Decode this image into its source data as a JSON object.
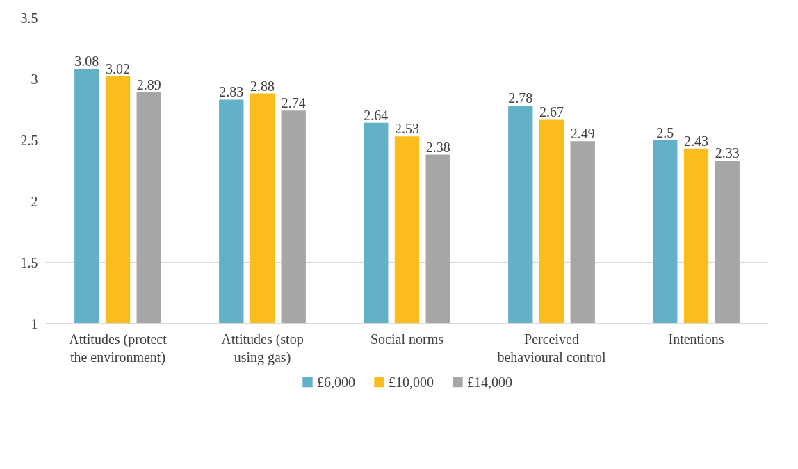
{
  "chart_data": {
    "type": "bar",
    "categories": [
      "Attitudes (protect the environment)",
      "Attitudes (stop using gas)",
      "Social norms",
      "Perceived behavioural control",
      "Intentions"
    ],
    "series": [
      {
        "name": "£6,000",
        "color": "#63b1c9",
        "values": [
          3.08,
          2.83,
          2.64,
          2.78,
          2.5
        ]
      },
      {
        "name": "£10,000",
        "color": "#fbbc1d",
        "values": [
          3.02,
          2.88,
          2.53,
          2.67,
          2.43
        ]
      },
      {
        "name": "£14,000",
        "color": "#a6a6a6",
        "values": [
          2.89,
          2.74,
          2.38,
          2.49,
          2.33
        ]
      }
    ],
    "ylim": [
      1,
      3.5
    ],
    "yticks": [
      1,
      1.5,
      2,
      2.5,
      3,
      3.5
    ],
    "grid": "y",
    "legend": "bottom",
    "data_labels": true
  }
}
